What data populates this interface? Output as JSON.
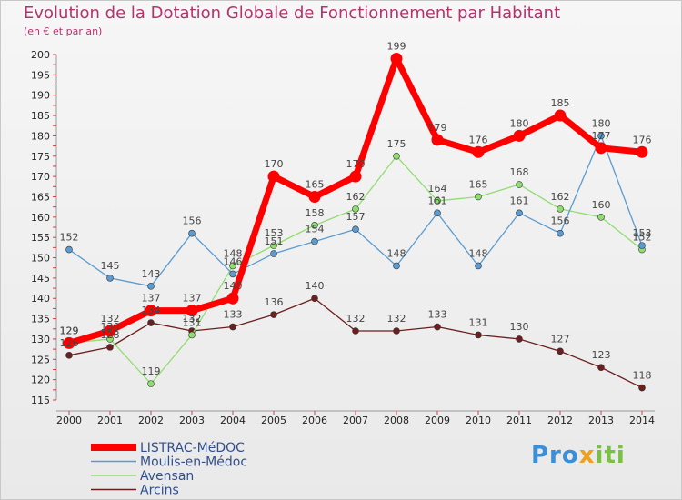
{
  "title": "Evolution de la Dotation Globale de Fonctionnement par Habitant",
  "subtitle": "(en € et par an)",
  "logo_text": "Proxiti",
  "chart_data": {
    "type": "line",
    "title": "Evolution de la Dotation Globale de Fonctionnement par Habitant",
    "ylabel": "(en € et par an)",
    "xlabel": "",
    "x": [
      "2000",
      "2001",
      "2002",
      "2003",
      "2004",
      "2005",
      "2006",
      "2007",
      "2008",
      "2009",
      "2010",
      "2011",
      "2012",
      "2013",
      "2014"
    ],
    "ylim": [
      115,
      200
    ],
    "yticks": [
      115,
      120,
      125,
      130,
      135,
      140,
      145,
      150,
      155,
      160,
      165,
      170,
      175,
      180,
      185,
      190,
      195,
      200
    ],
    "grid": false,
    "legend_position": "bottom-left",
    "series": [
      {
        "name": "Arcins",
        "color": "#6b1f1f",
        "values": [
          126,
          128,
          134,
          132,
          133,
          136,
          140,
          132,
          132,
          133,
          131,
          130,
          127,
          123,
          118
        ]
      },
      {
        "name": "Avensan",
        "color": "#90dd6f",
        "values": [
          129,
          130,
          119,
          131,
          148,
          153,
          158,
          162,
          175,
          164,
          165,
          168,
          162,
          160,
          152
        ]
      },
      {
        "name": "Moulis-en-Médoc",
        "color": "#5b9bd0",
        "values": [
          152,
          145,
          143,
          156,
          146,
          151,
          154,
          157,
          148,
          161,
          148,
          161,
          156,
          180,
          153
        ]
      },
      {
        "name": "LISTRAC-MéDOC",
        "color": "#ff0000",
        "values": [
          129,
          132,
          137,
          137,
          140,
          170,
          165,
          170,
          199,
          179,
          176,
          180,
          185,
          177,
          176
        ]
      }
    ]
  }
}
